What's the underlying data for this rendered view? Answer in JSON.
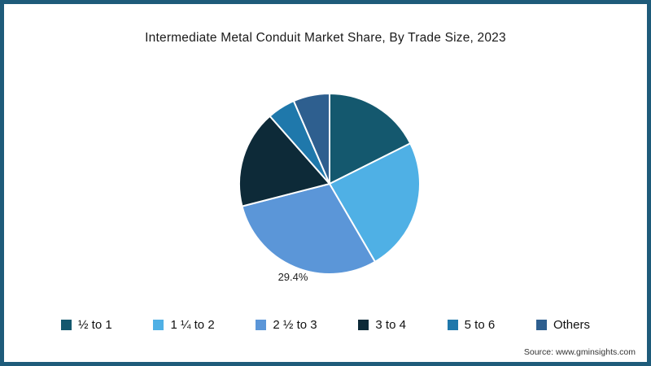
{
  "title": "Intermediate Metal Conduit Market Share, By Trade Size, 2023",
  "source": "Source: www.gminsights.com",
  "frame": {
    "border_color": "#1e5b7a",
    "background": "#ffffff"
  },
  "chart_data": {
    "type": "pie",
    "title": "Intermediate Metal Conduit Market Share, By Trade Size, 2023",
    "start_angle_deg": -90,
    "direction": "clockwise",
    "legend_position": "bottom",
    "slice_border_color": "#ffffff",
    "slices": [
      {
        "label": "½ to 1",
        "value": 17.6,
        "color": "#14586e",
        "data_label": ""
      },
      {
        "label": "1 ¼ to 2",
        "value": 24.0,
        "color": "#4fb0e5",
        "data_label": ""
      },
      {
        "label": "2 ½ to 3",
        "value": 29.4,
        "color": "#5b96d8",
        "data_label": "29.4%"
      },
      {
        "label": "3 to 4",
        "value": 17.5,
        "color": "#0d2a38",
        "data_label": ""
      },
      {
        "label": "5 to 6",
        "value": 5.0,
        "color": "#1f78ab",
        "data_label": ""
      },
      {
        "label": "Others",
        "value": 6.5,
        "color": "#2e5f8f",
        "data_label": ""
      }
    ]
  }
}
